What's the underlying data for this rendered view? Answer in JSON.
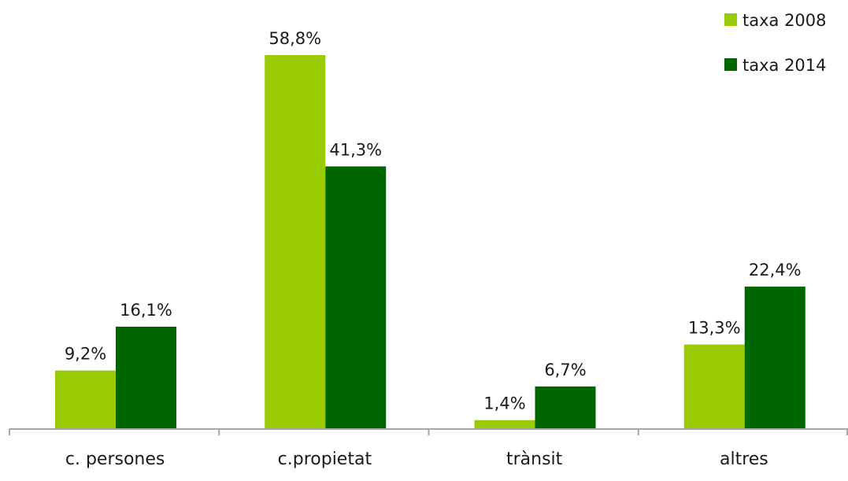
{
  "chart_data": {
    "type": "bar",
    "categories": [
      "c. persones",
      "c.propietat",
      "trànsit",
      "altres"
    ],
    "series": [
      {
        "name": "taxa 2008",
        "color": "#99cc00",
        "values": [
          9.2,
          58.8,
          1.4,
          13.3
        ],
        "labels": [
          "9,2%",
          "58,8%",
          "1,4%",
          "13,3%"
        ]
      },
      {
        "name": "taxa 2014",
        "color": "#006600",
        "values": [
          16.1,
          41.3,
          6.7,
          22.4
        ],
        "labels": [
          "16,1%",
          "41,3%",
          "6,7%",
          "22,4%"
        ]
      }
    ],
    "ylim": [
      0,
      58.8
    ],
    "grid": false,
    "legend_position": "top-right",
    "axis_color": "#a6a6a6"
  }
}
